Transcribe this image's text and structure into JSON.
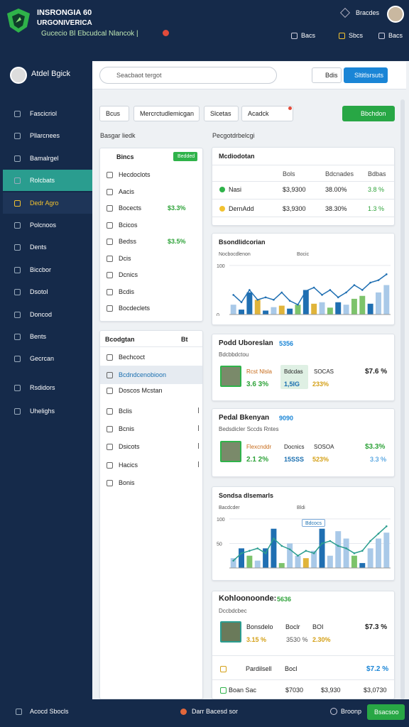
{
  "header": {
    "title_line1": "INSRONGIA 60",
    "title_line2": "URGONIVERICA",
    "subtitle": "Gucecio Bl Ebcudcal Nlancok |",
    "user": "Bracdes",
    "actions": [
      "Bacs",
      "Sbcs",
      "Bacs"
    ]
  },
  "sidebar": {
    "user": "Atdel Bgick",
    "items": [
      "Fascicriol",
      "Pllarcnees",
      "Bamalrgel",
      "Rolcbats",
      "Dedr Agro",
      "Polcnoos",
      "Dents",
      "Biccbor",
      "Dsotol",
      "Doncod",
      "Bents",
      "Gecrcan"
    ],
    "active": 3,
    "highlight": 4,
    "footer": [
      "Rsdidors",
      "Uhelighs"
    ]
  },
  "toolbar": {
    "search": "Seacbaot tergot",
    "button": "Bdis",
    "primary": "Sltitlsrsuts"
  },
  "tabs": {
    "items": [
      "Bcus",
      "Mercrctudlemicgan",
      "Slcetas",
      "Acadck"
    ],
    "action": "Bbchdon"
  },
  "left": {
    "heading": "Basgar liedk",
    "card": {
      "title": "Bincs",
      "badge": "Bedded",
      "items": [
        {
          "label": "Hecdoclots"
        },
        {
          "label": "Aacis"
        },
        {
          "label": "Bocects",
          "value": "$3.3%"
        },
        {
          "label": "Bcicos"
        },
        {
          "label": "Bedss",
          "value": "$3.5%"
        },
        {
          "label": "Dcis"
        },
        {
          "label": "Dcnics"
        },
        {
          "label": "Bcdis"
        },
        {
          "label": "Bocdeclets"
        }
      ]
    },
    "list": {
      "title": "Bcodgtan",
      "tag": "Bt",
      "selected": 1,
      "items": [
        {
          "label": "Bechcoct"
        },
        {
          "label": "Bcdndcenobioon"
        },
        {
          "label": "Doscos Mcstan"
        },
        {
          "label": "Bclis",
          "more": true
        },
        {
          "label": "Bcnis",
          "more": true
        },
        {
          "label": "Dsicots",
          "more": true
        },
        {
          "label": "Hacics",
          "more": true
        },
        {
          "label": "Bonis"
        }
      ]
    }
  },
  "right": {
    "heading": "Pecgotdrbelcgi",
    "table": {
      "title": "Mcdiodotan",
      "columns": [
        "Bols",
        "Bdcnades",
        "Bdbas"
      ],
      "rows": [
        {
          "name": "Nasi",
          "cells": [
            "$3,9300",
            "38.00%",
            "3.8 %"
          ]
        },
        {
          "name": "DernAdd",
          "cells": [
            "$3,9300",
            "38.30%",
            "1.3 %"
          ]
        }
      ]
    },
    "charts": [
      {
        "type": "bar",
        "title": "Bsondlidcorian",
        "legend": [
          "Nocbocdlenon",
          "Bocic"
        ],
        "ylim": [
          0,
          110
        ],
        "yticks": [
          0,
          100
        ],
        "values": [
          20,
          10,
          45,
          30,
          8,
          15,
          18,
          12,
          20,
          50,
          22,
          25,
          14,
          25,
          20,
          32,
          38,
          22,
          45,
          60
        ],
        "colors": [
          "#a9c9e8",
          "#1f6fb2",
          "#1f6fb2",
          "#e0b43a",
          "#1f6fb2",
          "#a9c9e8",
          "#e0b43a",
          "#1f6fb2",
          "#7dc36b",
          "#1f6fb2",
          "#e0b43a",
          "#a9c9e8",
          "#7dc36b",
          "#1f6fb2",
          "#a9c9e8",
          "#7dc36b",
          "#7dc36b",
          "#1f6fb2",
          "#a9c9e8",
          "#a9c9e8"
        ],
        "line": [
          40,
          25,
          50,
          30,
          35,
          30,
          45,
          28,
          20,
          48,
          55,
          40,
          50,
          35,
          45,
          60,
          50,
          65,
          70,
          82
        ],
        "line_color": "#1f6fb2"
      },
      {
        "type": "bar",
        "title": "Sondsa dlsemarls",
        "legend": [
          "Bacdcder",
          "Bldi"
        ],
        "callout": "Bdcocs",
        "ylim": [
          0,
          110
        ],
        "yticks": [
          50,
          100
        ],
        "values": [
          20,
          40,
          25,
          15,
          40,
          80,
          10,
          50,
          25,
          20,
          35,
          80,
          25,
          75,
          60,
          25,
          10,
          40,
          60,
          72
        ],
        "colors": [
          "#a9c9e8",
          "#1f6fb2",
          "#7dc36b",
          "#a9c9e8",
          "#1f6fb2",
          "#1f6fb2",
          "#7dc36b",
          "#a9c9e8",
          "#a9c9e8",
          "#e0b43a",
          "#a9c9e8",
          "#1f6fb2",
          "#a9c9e8",
          "#a9c9e8",
          "#a9c9e8",
          "#7dc36b",
          "#1f6fb2",
          "#a9c9e8",
          "#a9c9e8",
          "#a9c9e8"
        ],
        "line": [
          15,
          30,
          35,
          40,
          30,
          60,
          45,
          38,
          25,
          35,
          30,
          50,
          55,
          45,
          40,
          30,
          35,
          55,
          70,
          85
        ],
        "line_color": "#2a9d8f"
      }
    ],
    "profiles": [
      {
        "title": "Podd Uboreslan",
        "tag": "5356",
        "subtitle": "Bdcbbdctou",
        "name": "Rcst Nlsla",
        "change": "3.6 3%",
        "box_label": "Bdcdas",
        "box_value": "1,5IG",
        "metric_label": "SOCAS",
        "metric": "233%",
        "value": "$7.6 %"
      },
      {
        "title": "Pedal Bkenyan",
        "tag": "9090",
        "subtitle": "Bedsdicler Sccds Rntes",
        "name": "Flexcnddr",
        "change": "2.1 2%",
        "box_label": "Docnics",
        "box_value": "15SSS",
        "metric_label": "SOSOA",
        "metric": "523%",
        "value": "$3.3%",
        "value2": "3.3 %"
      }
    ],
    "summary": {
      "title": "Kohloonoonde:",
      "tag": "5636",
      "subtitle": "Dccbdcbec",
      "name": "Bonsdelo",
      "change": "3.15 %",
      "mid_label": "Boclr",
      "mid_value": "3530 %",
      "metric_label": "BOI",
      "metric": "2.30%",
      "value": "$7.3 %",
      "rows": [
        [
          "Pardilsell",
          "Bocl",
          "$7.2 %"
        ],
        [
          "Boan Sac",
          "$7030",
          "$3,930",
          "$3,0730"
        ]
      ]
    }
  },
  "footer": {
    "left": "Acocd Sbocls",
    "center": "Darr Bacesd sor",
    "right": "Broonp",
    "button": "Bsacsoo"
  }
}
